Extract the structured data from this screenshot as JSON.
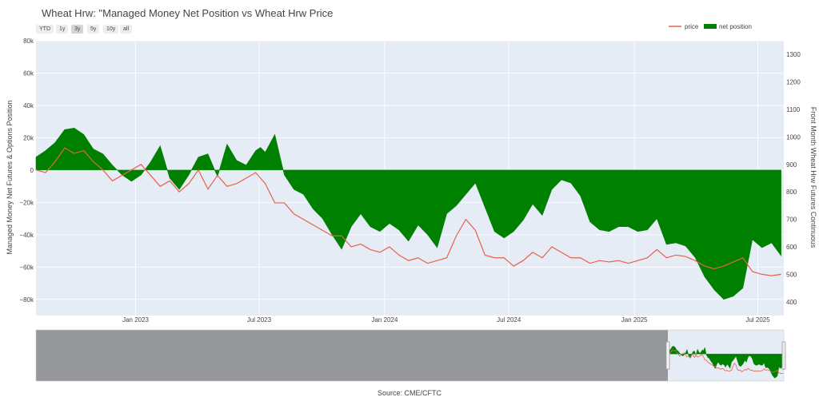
{
  "title": "Wheat Hrw: \"Managed Money Net Position vs Wheat Hrw Price",
  "source": "Source: CME/CFTC",
  "range_selector": {
    "buttons": [
      "YTD",
      "1y",
      "3y",
      "5y",
      "10y",
      "all"
    ],
    "active": "3y"
  },
  "chart_data": {
    "type": "line",
    "title": "Wheat Hrw: \"Managed Money Net Position vs Wheat Hrw Price",
    "left_axis": {
      "label": "Managed Money Net Futures & Options Position",
      "range": [
        -90000,
        80000
      ],
      "ticks": [
        80000,
        60000,
        40000,
        20000,
        0,
        -20000,
        -40000,
        -60000,
        -80000
      ],
      "tick_labels": [
        "80k",
        "60k",
        "40k",
        "20k",
        "0",
        "−20k",
        "−40k",
        "−60k",
        "−80k"
      ]
    },
    "right_axis": {
      "label": "Front Month Wheat Hrw Futures Continuous",
      "range": [
        350,
        1350
      ],
      "ticks": [
        1300,
        1200,
        1100,
        1000,
        900,
        800,
        700,
        600,
        500,
        400
      ],
      "tick_labels": [
        "1300",
        "1200",
        "1100",
        "1000",
        "900",
        "800",
        "700",
        "600",
        "500",
        "400"
      ]
    },
    "x_axis": {
      "range": [
        "2022-08-08",
        "2025-08-08"
      ],
      "ticks": [
        "2023-01-01",
        "2023-07-01",
        "2024-01-01",
        "2024-07-01",
        "2025-01-01",
        "2025-07-01"
      ],
      "tick_labels": [
        "Jan 2023",
        "Jul 2023",
        "Jan 2024",
        "Jul 2024",
        "Jan 2025",
        "Jul 2025"
      ]
    },
    "grid": true,
    "legend_position": "top-right",
    "legend": [
      "price",
      "net position"
    ],
    "series": [
      {
        "name": "net position",
        "style": "area",
        "color": "#008000",
        "x": [
          "2022-08-08",
          "2022-08-22",
          "2022-09-05",
          "2022-09-19",
          "2022-10-03",
          "2022-10-17",
          "2022-10-31",
          "2022-11-14",
          "2022-11-28",
          "2022-12-12",
          "2022-12-26",
          "2023-01-09",
          "2023-01-23",
          "2023-02-06",
          "2023-02-20",
          "2023-03-06",
          "2023-03-20",
          "2023-04-03",
          "2023-04-17",
          "2023-05-01",
          "2023-05-15",
          "2023-05-29",
          "2023-06-12",
          "2023-06-26",
          "2023-07-03",
          "2023-07-10",
          "2023-07-24",
          "2023-08-07",
          "2023-08-21",
          "2023-09-04",
          "2023-09-18",
          "2023-10-02",
          "2023-10-16",
          "2023-10-30",
          "2023-11-13",
          "2023-11-27",
          "2023-12-11",
          "2023-12-25",
          "2024-01-08",
          "2024-01-22",
          "2024-02-05",
          "2024-02-19",
          "2024-03-04",
          "2024-03-18",
          "2024-04-01",
          "2024-04-15",
          "2024-04-29",
          "2024-05-13",
          "2024-05-27",
          "2024-06-10",
          "2024-06-24",
          "2024-07-08",
          "2024-07-22",
          "2024-08-05",
          "2024-08-19",
          "2024-09-02",
          "2024-09-16",
          "2024-09-30",
          "2024-10-14",
          "2024-10-28",
          "2024-11-11",
          "2024-11-25",
          "2024-12-09",
          "2024-12-23",
          "2025-01-06",
          "2025-01-20",
          "2025-02-03",
          "2025-02-17",
          "2025-03-03",
          "2025-03-17",
          "2025-03-31",
          "2025-04-14",
          "2025-04-28",
          "2025-05-12",
          "2025-05-26",
          "2025-06-09",
          "2025-06-23",
          "2025-07-07",
          "2025-07-21",
          "2025-08-04"
        ],
        "y": [
          8000,
          12000,
          17000,
          25000,
          26000,
          22000,
          13000,
          10000,
          3000,
          -3000,
          -7000,
          -3000,
          5000,
          15000,
          -5000,
          -12000,
          -3000,
          8000,
          10000,
          -4000,
          16000,
          6000,
          3000,
          12000,
          14000,
          11000,
          22000,
          -3000,
          -12000,
          -15000,
          -24000,
          -30000,
          -40000,
          -49000,
          -35000,
          -27000,
          -35000,
          -38000,
          -33000,
          -37000,
          -44000,
          -34000,
          -40000,
          -48000,
          -27000,
          -22000,
          -15000,
          -8000,
          -23000,
          -38000,
          -42000,
          -38000,
          -31000,
          -21000,
          -28000,
          -12000,
          -6000,
          -8000,
          -16000,
          -32000,
          -37000,
          -38000,
          -35000,
          -35000,
          -38000,
          -37000,
          -30000,
          -46000,
          -45000,
          -47000,
          -54000,
          -66000,
          -74000,
          -80000,
          -78000,
          -73000,
          -43000,
          -48000,
          -45000,
          -53000
        ]
      },
      {
        "name": "price",
        "style": "line",
        "color": "#e8604b",
        "x": [
          "2022-08-08",
          "2022-08-22",
          "2022-09-05",
          "2022-09-19",
          "2022-10-03",
          "2022-10-17",
          "2022-10-31",
          "2022-11-14",
          "2022-11-28",
          "2022-12-12",
          "2022-12-26",
          "2023-01-09",
          "2023-01-23",
          "2023-02-06",
          "2023-02-20",
          "2023-03-06",
          "2023-03-20",
          "2023-04-03",
          "2023-04-17",
          "2023-05-01",
          "2023-05-15",
          "2023-05-29",
          "2023-06-12",
          "2023-06-26",
          "2023-07-03",
          "2023-07-10",
          "2023-07-24",
          "2023-08-07",
          "2023-08-21",
          "2023-09-04",
          "2023-09-18",
          "2023-10-02",
          "2023-10-16",
          "2023-10-30",
          "2023-11-13",
          "2023-11-27",
          "2023-12-11",
          "2023-12-25",
          "2024-01-08",
          "2024-01-22",
          "2024-02-05",
          "2024-02-19",
          "2024-03-04",
          "2024-03-18",
          "2024-04-01",
          "2024-04-15",
          "2024-04-29",
          "2024-05-13",
          "2024-05-27",
          "2024-06-10",
          "2024-06-24",
          "2024-07-08",
          "2024-07-22",
          "2024-08-05",
          "2024-08-19",
          "2024-09-02",
          "2024-09-16",
          "2024-09-30",
          "2024-10-14",
          "2024-10-28",
          "2024-11-11",
          "2024-11-25",
          "2024-12-09",
          "2024-12-23",
          "2025-01-06",
          "2025-01-20",
          "2025-02-03",
          "2025-02-17",
          "2025-03-03",
          "2025-03-17",
          "2025-03-31",
          "2025-04-14",
          "2025-04-28",
          "2025-05-12",
          "2025-05-26",
          "2025-06-09",
          "2025-06-23",
          "2025-07-07",
          "2025-07-21",
          "2025-08-04"
        ],
        "y": [
          880,
          870,
          910,
          960,
          940,
          950,
          910,
          880,
          840,
          860,
          880,
          900,
          860,
          820,
          840,
          800,
          830,
          880,
          810,
          860,
          820,
          830,
          850,
          870,
          850,
          830,
          760,
          760,
          720,
          700,
          680,
          660,
          640,
          640,
          600,
          610,
          590,
          580,
          600,
          570,
          550,
          560,
          540,
          550,
          560,
          640,
          700,
          660,
          570,
          560,
          560,
          530,
          550,
          580,
          560,
          600,
          580,
          560,
          560,
          540,
          550,
          545,
          550,
          540,
          550,
          560,
          590,
          560,
          570,
          565,
          550,
          530,
          520,
          530,
          545,
          560,
          510,
          500,
          495,
          500
        ]
      }
    ]
  }
}
